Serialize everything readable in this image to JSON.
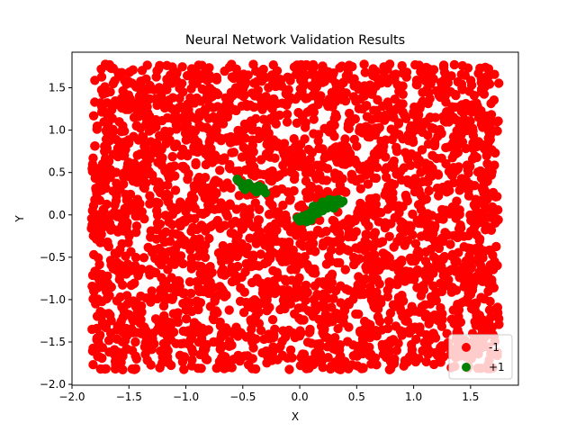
{
  "chart_data": {
    "type": "scatter",
    "title": "Neural Network Validation Results",
    "xlabel": "X",
    "ylabel": "Y",
    "xlim": [
      -2.0,
      1.92
    ],
    "ylim": [
      -2.01,
      1.92
    ],
    "xticks": [
      -2.0,
      -1.5,
      -1.0,
      -0.5,
      0.0,
      0.5,
      1.0,
      1.5
    ],
    "xtick_labels": [
      "−2.0",
      "−1.5",
      "−1.0",
      "−0.5",
      "0.0",
      "0.5",
      "1.0",
      "1.5"
    ],
    "yticks": [
      -2.0,
      -1.5,
      -1.0,
      -0.5,
      0.0,
      0.5,
      1.0,
      1.5
    ],
    "ytick_labels": [
      "−2.0",
      "−1.5",
      "−1.0",
      "−0.5",
      "0.0",
      "0.5",
      "1.0",
      "1.5"
    ],
    "grid": false,
    "legend_position": "bottom-right",
    "series": [
      {
        "name": "-1",
        "color": "#ff0000",
        "distribution": "dense uniform cloud over the square",
        "x_range": [
          -1.83,
          1.75
        ],
        "y_range": [
          -1.83,
          1.78
        ],
        "approx_count": 3000
      },
      {
        "name": "+1",
        "color": "#008000",
        "points": [
          [
            -0.55,
            0.42
          ],
          [
            -0.52,
            0.38
          ],
          [
            -0.5,
            0.33
          ],
          [
            -0.48,
            0.3
          ],
          [
            -0.45,
            0.37
          ],
          [
            -0.42,
            0.33
          ],
          [
            -0.4,
            0.3
          ],
          [
            -0.38,
            0.27
          ],
          [
            -0.36,
            0.34
          ],
          [
            -0.34,
            0.29
          ],
          [
            -0.32,
            0.31
          ],
          [
            -0.3,
            0.26
          ],
          [
            -0.02,
            -0.04
          ],
          [
            0.0,
            -0.07
          ],
          [
            0.02,
            -0.02
          ],
          [
            0.04,
            -0.05
          ],
          [
            0.06,
            0.0
          ],
          [
            0.08,
            -0.03
          ],
          [
            0.1,
            0.03
          ],
          [
            0.12,
            0.0
          ],
          [
            0.14,
            0.06
          ],
          [
            0.16,
            0.02
          ],
          [
            0.18,
            0.09
          ],
          [
            0.2,
            0.05
          ],
          [
            0.22,
            0.12
          ],
          [
            0.24,
            0.08
          ],
          [
            0.26,
            0.14
          ],
          [
            0.28,
            0.1
          ],
          [
            0.3,
            0.17
          ],
          [
            0.32,
            0.12
          ],
          [
            0.34,
            0.18
          ],
          [
            0.36,
            0.14
          ],
          [
            0.38,
            0.16
          ],
          [
            0.12,
            0.1
          ],
          [
            0.2,
            0.15
          ],
          [
            0.26,
            0.18
          ],
          [
            0.06,
            -0.08
          ],
          [
            0.16,
            0.1
          ],
          [
            0.3,
            0.08
          ],
          [
            0.1,
            -0.06
          ]
        ]
      }
    ]
  }
}
